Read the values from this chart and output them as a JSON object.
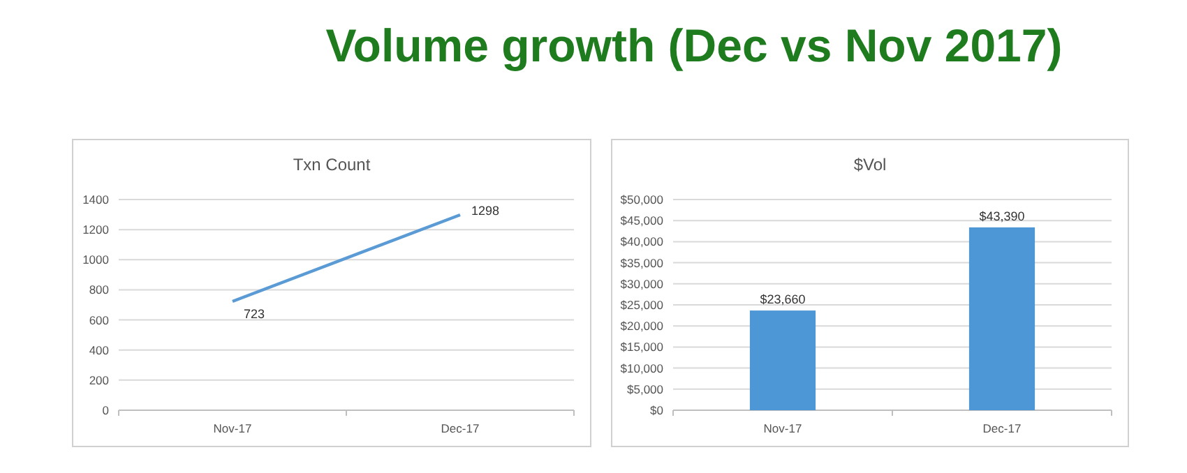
{
  "chart_data": [
    {
      "type": "other",
      "title": "Volume growth (Dec vs Nov 2017)"
    },
    {
      "type": "line",
      "title": "Txn Count",
      "categories": [
        "Nov-17",
        "Dec-17"
      ],
      "series": [
        {
          "color": "#5b9bd5",
          "values": [
            723,
            1298
          ]
        }
      ],
      "ylim": [
        0,
        1400
      ],
      "yticks": [
        0,
        200,
        400,
        600,
        800,
        1000,
        1200,
        1400
      ],
      "grid": "y",
      "data_labels": true,
      "marker": "none"
    },
    {
      "type": "bar",
      "title": "$Vol",
      "categories": [
        "Nov-17",
        "Dec-17"
      ],
      "series": [
        {
          "color": "#4e97d6",
          "values": [
            23660,
            43390
          ]
        }
      ],
      "value_labels": [
        "$23,660",
        "$43,390"
      ],
      "ylim": [
        0,
        50000
      ],
      "yticks": [
        {
          "value": 0,
          "label": "$0"
        },
        {
          "value": 5000,
          "label": "$5,000"
        },
        {
          "value": 10000,
          "label": "$10,000"
        },
        {
          "value": 15000,
          "label": "$15,000"
        },
        {
          "value": 20000,
          "label": "$20,000"
        },
        {
          "value": 25000,
          "label": "$25,000"
        },
        {
          "value": 30000,
          "label": "$30,000"
        },
        {
          "value": 35000,
          "label": "$35,000"
        },
        {
          "value": 40000,
          "label": "$40,000"
        },
        {
          "value": 45000,
          "label": "$45,000"
        },
        {
          "value": 50000,
          "label": "$50,000"
        }
      ],
      "grid": "y"
    }
  ]
}
